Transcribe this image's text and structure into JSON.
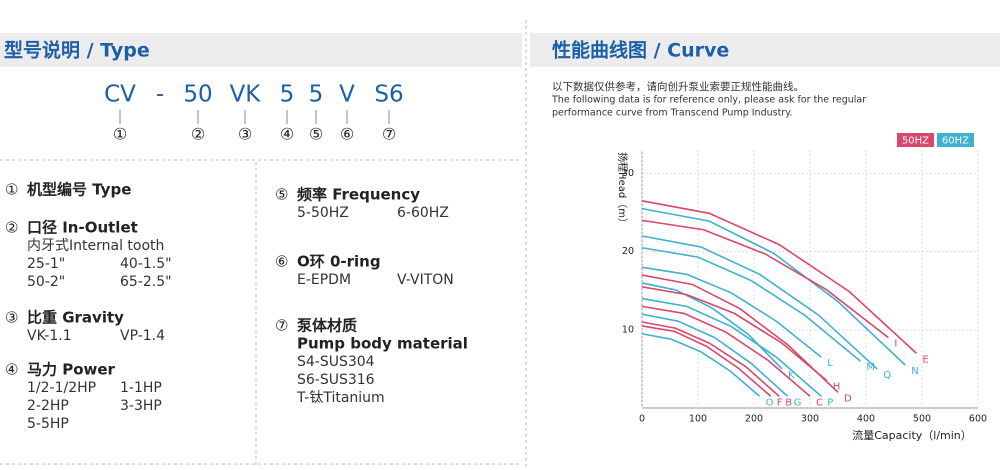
{
  "left": {
    "title": "型号说明 / Type",
    "code": [
      "CV",
      "-",
      "50",
      "VK",
      "5",
      "5",
      "V",
      "S6"
    ],
    "code_numbers": [
      "①",
      "②",
      "③",
      "④",
      "⑤",
      "⑥",
      "⑦"
    ],
    "items": [
      {
        "num": "①",
        "title": "机型编号 Type",
        "rows": []
      },
      {
        "num": "②",
        "title": "口径 In-Outlet",
        "rows": [
          [
            "内牙式Internal tooth"
          ],
          [
            "25-1\"",
            "40-1.5\""
          ],
          [
            "50-2\"",
            "65-2.5\""
          ]
        ]
      },
      {
        "num": "③",
        "title": "比重 Gravity",
        "rows": [
          [
            "VK-1.1",
            "VP-1.4"
          ]
        ]
      },
      {
        "num": "④",
        "title": "马力 Power",
        "rows": [
          [
            "1/2-1/2HP",
            "1-1HP"
          ],
          [
            "2-2HP",
            "3-3HP"
          ],
          [
            "5-5HP"
          ]
        ]
      },
      {
        "num": "⑤",
        "title": "频率 Frequency",
        "rows": [
          [
            "5-50HZ",
            "6-60HZ"
          ]
        ]
      },
      {
        "num": "⑥",
        "title": "O环 0-ring",
        "rows": [
          [
            "E-EPDM",
            "V-VITON"
          ]
        ]
      },
      {
        "num": "⑦",
        "title": "泵体材质",
        "title2": "Pump body material",
        "rows": [
          [
            "S4-SUS304"
          ],
          [
            "S6-SUS316"
          ],
          [
            "T-钛Titanium"
          ]
        ]
      }
    ]
  },
  "right": {
    "title": "性能曲线图 / Curve",
    "note": [
      "以下数据仅供参考，请向创升泵业索要正规性能曲线。",
      "The following data is for reference only, please ask for the regular",
      "performance curve from Transcend Pump Industry."
    ]
  },
  "chart_data": {
    "type": "line",
    "x_label": "流量Capacity（l/min）",
    "y_label": "扬程Head（m）",
    "xlim": [
      0,
      600
    ],
    "xticks": [
      0,
      100,
      200,
      300,
      400,
      500,
      600
    ],
    "ylim": [
      0,
      33
    ],
    "yticks": [
      10,
      20,
      30
    ],
    "legend": [
      {
        "label": "50HZ",
        "color": "#d9476a"
      },
      {
        "label": "60HZ",
        "color": "#3fb0cf"
      }
    ],
    "series": [
      {
        "name": "E",
        "color": "#d9476a",
        "x": [
          0,
          120,
          245,
          370,
          490
        ],
        "values": [
          26.5,
          24.9,
          20.9,
          14.9,
          7
        ]
      },
      {
        "name": "N",
        "color": "#3fb0cf",
        "x": [
          0,
          120,
          235,
          350,
          470
        ],
        "values": [
          25.5,
          23.9,
          19.8,
          13.6,
          5.5
        ]
      },
      {
        "name": "I",
        "color": "#d9476a",
        "x": [
          0,
          110,
          220,
          330,
          440
        ],
        "values": [
          24,
          22.8,
          19.7,
          15.1,
          9
        ]
      },
      {
        "name": "Q",
        "color": "#3fb0cf",
        "x": [
          0,
          105,
          210,
          315,
          420
        ],
        "values": [
          22,
          20.6,
          17.1,
          11.9,
          5
        ]
      },
      {
        "name": "M",
        "color": "#3fb0cf",
        "x": [
          0,
          100,
          195,
          290,
          390
        ],
        "values": [
          20.5,
          19.3,
          16.3,
          11.9,
          6
        ]
      },
      {
        "name": "L",
        "color": "#3fb0cf",
        "x": [
          0,
          80,
          160,
          240,
          320
        ],
        "values": [
          18,
          17.1,
          14.7,
          11.1,
          6.5
        ]
      },
      {
        "name": "K",
        "color": "#3fb0cf",
        "x": [
          0,
          60,
          125,
          190,
          250
        ],
        "values": [
          16,
          15.1,
          12.8,
          9.4,
          5
        ]
      },
      {
        "name": "D",
        "color": "#d9476a",
        "x": [
          0,
          90,
          175,
          260,
          350
        ],
        "values": [
          17,
          15.8,
          12.7,
          8.1,
          2
        ]
      },
      {
        "name": "H",
        "color": "#d9476a",
        "x": [
          0,
          80,
          165,
          250,
          330
        ],
        "values": [
          15.5,
          14.5,
          12.1,
          8.3,
          3.5
        ]
      },
      {
        "name": "P",
        "color": "#3fb0cf",
        "x": [
          0,
          80,
          160,
          240,
          320
        ],
        "values": [
          14,
          13,
          10.4,
          6.5,
          1.5
        ]
      },
      {
        "name": "C",
        "color": "#d9476a",
        "x": [
          0,
          75,
          150,
          225,
          300
        ],
        "values": [
          13,
          12.1,
          9.7,
          6.1,
          1.5
        ]
      },
      {
        "name": "G",
        "color": "#3fb0cf",
        "x": [
          0,
          65,
          130,
          195,
          260
        ],
        "values": [
          12,
          11.1,
          9,
          5.7,
          1.5
        ]
      },
      {
        "name": "B",
        "color": "#d9476a",
        "x": [
          0,
          60,
          120,
          185,
          245
        ],
        "values": [
          11,
          10.2,
          8.3,
          5.3,
          1.5
        ]
      },
      {
        "name": "F",
        "color": "#d9476a",
        "x": [
          0,
          58,
          115,
          172,
          230
        ],
        "values": [
          10.5,
          9.8,
          7.9,
          5.1,
          1.5
        ]
      },
      {
        "name": "O",
        "color": "#3fb0cf",
        "x": [
          0,
          52,
          105,
          158,
          210
        ],
        "values": [
          9.5,
          8.8,
          7.2,
          4.7,
          1.5
        ]
      }
    ]
  }
}
